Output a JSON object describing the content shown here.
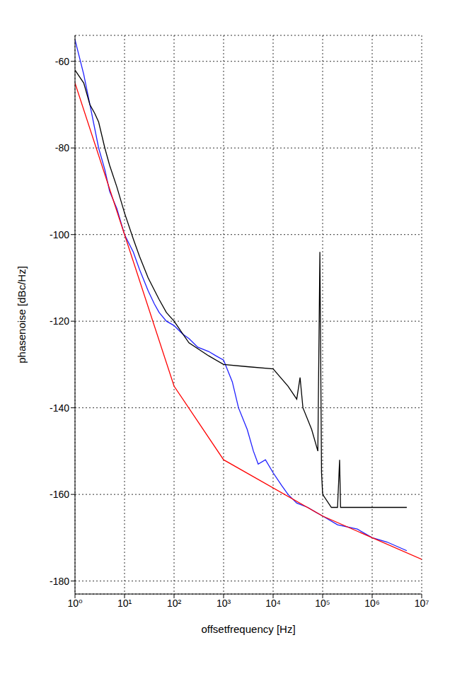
{
  "chart_data": {
    "type": "line",
    "xlabel": "offsetfrequency [Hz]",
    "ylabel": "phasenoise [dBc/Hz]",
    "log": "x",
    "grid": true,
    "xlim": [
      1,
      10000000
    ],
    "xticks": [
      {
        "value": 1,
        "label": "10⁰"
      },
      {
        "value": 10,
        "label": "10¹"
      },
      {
        "value": 100,
        "label": "10²"
      },
      {
        "value": 1000,
        "label": "10³"
      },
      {
        "value": 10000,
        "label": "10⁴"
      },
      {
        "value": 100000,
        "label": "10⁵"
      },
      {
        "value": 1000000,
        "label": "10⁶"
      },
      {
        "value": 10000000,
        "label": "10⁷"
      }
    ],
    "ylim": [
      -183,
      -54
    ],
    "yticks": [
      -180,
      -160,
      -140,
      -120,
      -100,
      -80,
      -60
    ],
    "series": [
      {
        "color": "#1f1fff",
        "x": [
          1,
          1.5,
          2,
          3,
          4,
          5,
          7,
          10,
          15,
          20,
          30,
          40,
          50,
          70,
          100,
          150,
          200,
          300,
          500,
          700,
          1000,
          1500,
          2000,
          3000,
          4000,
          5000,
          7000,
          10000,
          15000,
          20000,
          30000,
          50000,
          70000,
          100000,
          200000,
          500000,
          1000000,
          2000000,
          5000000
        ],
        "values": [
          -55,
          -63,
          -70,
          -80,
          -85,
          -90,
          -94,
          -100,
          -104,
          -108,
          -113,
          -116,
          -118,
          -120,
          -121,
          -123,
          -124,
          -126,
          -127,
          -128,
          -129,
          -134,
          -140,
          -145,
          -150,
          -153,
          -152,
          -155,
          -158,
          -160,
          -162,
          -163,
          -164,
          -165,
          -167,
          -168,
          -170,
          -171,
          -173
        ]
      },
      {
        "color": "#000000",
        "x": [
          1,
          1.5,
          2,
          2.5,
          3,
          4,
          5,
          7,
          10,
          15,
          20,
          30,
          50,
          70,
          100,
          200,
          500,
          1000,
          3000,
          10000,
          20000,
          30000,
          35000,
          40000,
          60000,
          80000,
          88000,
          95000,
          100000,
          150000,
          200000,
          220000,
          230000,
          400000,
          1000000,
          5000000
        ],
        "values": [
          -62,
          -65,
          -70,
          -72,
          -74,
          -80,
          -84,
          -89,
          -95,
          -101,
          -105,
          -110,
          -115,
          -118,
          -120,
          -125,
          -128,
          -130,
          -130.5,
          -131,
          -135,
          -138,
          -133,
          -140,
          -145,
          -150,
          -104,
          -155,
          -160,
          -163,
          -163,
          -152,
          -163,
          -163,
          -163,
          -163
        ]
      },
      {
        "color": "#ff0000",
        "x": [
          1,
          100,
          1000,
          100000,
          10000000
        ],
        "values": [
          -65,
          -135,
          -152,
          -165,
          -175
        ]
      }
    ]
  }
}
